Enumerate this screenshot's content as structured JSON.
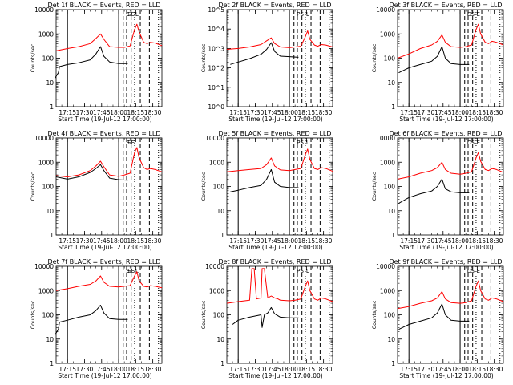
{
  "chart_data": [
    {
      "type": "line",
      "title": "Det 1f BLACK = Events, RED = LLD",
      "xlabel": "Start Time (19-Jul-12 17:00:00)",
      "ylabel": "Counts/sec",
      "ylog": true,
      "ylim": [
        1,
        10000
      ],
      "ytick_labels": [
        "1",
        "10",
        "100",
        "1000",
        "10000"
      ],
      "xlim": [
        "17:05",
        "18:38"
      ],
      "xtick_labels": [
        "17:15",
        "17:30",
        "17:45",
        "18:00",
        "18:15",
        "18:30"
      ],
      "markers": [
        "S",
        "SE",
        "L"
      ],
      "series": [
        {
          "color": "#ff0000",
          "x": [
            "17:05",
            "17:15",
            "17:25",
            "17:35",
            "17:40",
            "17:44",
            "17:47",
            "17:52",
            "18:00",
            "18:05",
            "18:10",
            "18:14",
            "18:16",
            "18:18",
            "18:22",
            "18:25",
            "18:28",
            "18:32",
            "18:38"
          ],
          "y": [
            200,
            250,
            300,
            400,
            650,
            1000,
            600,
            300,
            280,
            280,
            320,
            1500,
            2500,
            1200,
            450,
            400,
            450,
            420,
            330
          ]
        },
        {
          "color": "#000000",
          "x": [
            "17:04",
            "17:07",
            "17:08",
            "17:15",
            "17:25",
            "17:35",
            "17:40",
            "17:44",
            "17:47",
            "17:52",
            "18:00",
            "18:08"
          ],
          "y": [
            15,
            25,
            45,
            55,
            65,
            85,
            150,
            300,
            120,
            70,
            60,
            60
          ]
        }
      ]
    },
    {
      "type": "line",
      "title": "Det 2f BLACK = Events, RED = LLD",
      "xlabel": "Start Time (19-Jul-12 17:00:00)",
      "ylabel": "Counts/sec",
      "ylog": true,
      "ylim": [
        1,
        100000
      ],
      "ytick_labels": [
        "10^0",
        "10^1",
        "10^2",
        "10^3",
        "10^4",
        "10^5"
      ],
      "xlim": [
        "17:05",
        "18:38"
      ],
      "xtick_labels": [
        "17:15",
        "17:30",
        "17:45",
        "18:00",
        "18:15",
        "18:30"
      ],
      "markers": [
        "P",
        "S",
        "L"
      ],
      "series": [
        {
          "color": "#ff0000",
          "x": [
            "17:05",
            "17:15",
            "17:25",
            "17:35",
            "17:40",
            "17:44",
            "17:47",
            "17:52",
            "18:00",
            "18:05",
            "18:10",
            "18:14",
            "18:16",
            "18:18",
            "18:22",
            "18:25",
            "18:28",
            "18:32",
            "18:38"
          ],
          "y": [
            900,
            1000,
            1200,
            1600,
            2500,
            3500,
            1800,
            1200,
            1100,
            1200,
            1300,
            4000,
            8000,
            3000,
            1500,
            1300,
            1600,
            1500,
            1200
          ]
        },
        {
          "color": "#000000",
          "x": [
            "17:08",
            "17:15",
            "17:25",
            "17:35",
            "17:40",
            "17:44",
            "17:47",
            "17:52",
            "18:00",
            "18:08"
          ],
          "y": [
            150,
            200,
            300,
            500,
            900,
            2000,
            700,
            400,
            380,
            350
          ]
        }
      ]
    },
    {
      "type": "line",
      "title": "Det 3f BLACK = Events, RED = LLD",
      "xlabel": "Start Time (19-Jul-12 17:00:00)",
      "ylabel": "Counts/sec",
      "ylog": true,
      "ylim": [
        1,
        10000
      ],
      "ytick_labels": [
        "1",
        "10",
        "100",
        "1000",
        "10000"
      ],
      "xlim": [
        "17:05",
        "18:38"
      ],
      "xtick_labels": [
        "17:15",
        "17:30",
        "17:45",
        "18:00",
        "18:15",
        "18:30"
      ],
      "markers": [
        "D",
        "S",
        "E"
      ],
      "series": [
        {
          "color": "#ff0000",
          "x": [
            "17:05",
            "17:15",
            "17:25",
            "17:35",
            "17:40",
            "17:44",
            "17:47",
            "17:52",
            "18:00",
            "18:05",
            "18:10",
            "18:14",
            "18:16",
            "18:18",
            "18:22",
            "18:25",
            "18:28",
            "18:32",
            "18:38"
          ],
          "y": [
            100,
            150,
            250,
            350,
            500,
            900,
            450,
            300,
            280,
            300,
            350,
            1500,
            2500,
            1000,
            450,
            400,
            500,
            450,
            350
          ]
        },
        {
          "color": "#000000",
          "x": [
            "17:06",
            "17:15",
            "17:25",
            "17:35",
            "17:40",
            "17:44",
            "17:47",
            "17:52",
            "18:00",
            "18:08"
          ],
          "y": [
            25,
            40,
            55,
            75,
            120,
            300,
            100,
            60,
            55,
            55
          ]
        }
      ]
    },
    {
      "type": "line",
      "title": "Det 4f BLACK = Events, RED = LLD",
      "xlabel": "Start Time (19-Jul-12 17:00:00)",
      "ylabel": "Counts/sec",
      "ylog": true,
      "ylim": [
        1,
        10000
      ],
      "ytick_labels": [
        "1",
        "10",
        "100",
        "1000",
        "10000"
      ],
      "xlim": [
        "17:05",
        "18:38"
      ],
      "xtick_labels": [
        "17:15",
        "17:30",
        "17:45",
        "18:00",
        "18:15",
        "18:30"
      ],
      "markers": [
        "S",
        "SE"
      ],
      "series": [
        {
          "color": "#ff0000",
          "x": [
            "17:05",
            "17:15",
            "17:25",
            "17:35",
            "17:40",
            "17:44",
            "17:47",
            "17:52",
            "18:00",
            "18:05",
            "18:10",
            "18:14",
            "18:16",
            "18:18",
            "18:22",
            "18:25",
            "18:28",
            "18:32",
            "18:38"
          ],
          "y": [
            280,
            250,
            300,
            450,
            700,
            1100,
            650,
            300,
            260,
            300,
            350,
            2500,
            4000,
            1500,
            600,
            500,
            550,
            500,
            400
          ]
        },
        {
          "color": "#000000",
          "x": [
            "17:05",
            "17:15",
            "17:25",
            "17:35",
            "17:40",
            "17:44",
            "17:47",
            "17:52",
            "18:00",
            "18:08"
          ],
          "y": [
            250,
            200,
            250,
            380,
            550,
            800,
            450,
            220,
            190,
            180
          ]
        }
      ]
    },
    {
      "type": "line",
      "title": "Det 5f BLACK = Events, RED = LLD",
      "xlabel": "Start Time (19-Jul-12 17:00:00)",
      "ylabel": "Counts/sec",
      "ylog": true,
      "ylim": [
        1,
        10000
      ],
      "ytick_labels": [
        "1",
        "10",
        "100",
        "1000",
        "10000"
      ],
      "xlim": [
        "17:05",
        "18:38"
      ],
      "xtick_labels": [
        "17:15",
        "17:30",
        "17:45",
        "18:00",
        "18:15",
        "18:30"
      ],
      "markers": [
        "P",
        "S",
        "L"
      ],
      "series": [
        {
          "color": "#ff0000",
          "x": [
            "17:05",
            "17:15",
            "17:25",
            "17:35",
            "17:40",
            "17:44",
            "17:47",
            "17:52",
            "18:00",
            "18:05",
            "18:10",
            "18:14",
            "18:16",
            "18:18",
            "18:22",
            "18:25",
            "18:28",
            "18:32",
            "18:38"
          ],
          "y": [
            400,
            450,
            500,
            550,
            800,
            1500,
            700,
            480,
            450,
            500,
            550,
            2000,
            3500,
            1300,
            550,
            500,
            600,
            550,
            420
          ]
        },
        {
          "color": "#000000",
          "x": [
            "17:08",
            "17:15",
            "17:25",
            "17:35",
            "17:40",
            "17:44",
            "17:47",
            "17:52",
            "18:00",
            "18:08"
          ],
          "y": [
            60,
            70,
            90,
            110,
            200,
            500,
            150,
            100,
            90,
            90
          ]
        }
      ]
    },
    {
      "type": "line",
      "title": "Det 6f BLACK = Events, RED = LLD",
      "xlabel": "Start Time (19-Jul-12 17:00:00)",
      "ylabel": "Counts/sec",
      "ylog": true,
      "ylim": [
        1,
        10000
      ],
      "ytick_labels": [
        "1",
        "10",
        "100",
        "1000",
        "10000"
      ],
      "xlim": [
        "17:05",
        "18:38"
      ],
      "xtick_labels": [
        "17:15",
        "17:30",
        "17:45",
        "18:00",
        "18:15",
        "18:30"
      ],
      "markers": [
        "D",
        "S",
        "E"
      ],
      "series": [
        {
          "color": "#ff0000",
          "x": [
            "17:05",
            "17:15",
            "17:25",
            "17:35",
            "17:40",
            "17:44",
            "17:47",
            "17:52",
            "18:00",
            "18:05",
            "18:10",
            "18:14",
            "18:16",
            "18:18",
            "18:22",
            "18:25",
            "18:28",
            "18:32",
            "18:38"
          ],
          "y": [
            200,
            250,
            350,
            450,
            600,
            1000,
            500,
            350,
            320,
            350,
            400,
            1500,
            2500,
            1100,
            500,
            450,
            550,
            500,
            380
          ]
        },
        {
          "color": "#000000",
          "x": [
            "17:06",
            "17:15",
            "17:25",
            "17:35",
            "17:40",
            "17:44",
            "17:47",
            "17:52",
            "18:00",
            "18:08"
          ],
          "y": [
            20,
            35,
            50,
            65,
            100,
            200,
            80,
            60,
            55,
            55
          ]
        }
      ]
    },
    {
      "type": "line",
      "title": "Det 7f BLACK = Events, RED = LLD",
      "xlabel": "Start Time (19-Jul-12 17:00:00)",
      "ylabel": "Counts/sec",
      "ylog": true,
      "ylim": [
        1,
        10000
      ],
      "ytick_labels": [
        "1",
        "10",
        "100",
        "1000",
        "10000"
      ],
      "xlim": [
        "17:05",
        "18:38"
      ],
      "xtick_labels": [
        "17:15",
        "17:30",
        "17:45",
        "18:00",
        "18:15",
        "18:30"
      ],
      "markers": [
        "S",
        "SE",
        "L"
      ],
      "series": [
        {
          "color": "#ff0000",
          "x": [
            "17:05",
            "17:15",
            "17:25",
            "17:35",
            "17:40",
            "17:44",
            "17:47",
            "17:52",
            "18:00",
            "18:05",
            "18:10",
            "18:14",
            "18:16",
            "18:18",
            "18:22",
            "18:25",
            "18:28",
            "18:32",
            "18:38"
          ],
          "y": [
            1000,
            1200,
            1500,
            1800,
            2500,
            4000,
            2200,
            1500,
            1400,
            1500,
            1600,
            4000,
            6000,
            2500,
            1500,
            1400,
            1600,
            1500,
            1300
          ]
        },
        {
          "color": "#000000",
          "x": [
            "17:04",
            "17:07",
            "17:08",
            "17:15",
            "17:25",
            "17:35",
            "17:40",
            "17:44",
            "17:47",
            "17:52",
            "18:00",
            "18:08"
          ],
          "y": [
            15,
            25,
            50,
            60,
            80,
            100,
            150,
            250,
            120,
            70,
            65,
            65
          ]
        }
      ]
    },
    {
      "type": "line",
      "title": "Det 8f BLACK = Events, RED = LLD",
      "xlabel": "Start Time (19-Jul-12 17:00:00)",
      "ylabel": "Counts/sec",
      "ylog": true,
      "ylim": [
        1,
        10000
      ],
      "ytick_labels": [
        "1",
        "10",
        "100",
        "1000",
        "10000"
      ],
      "xlim": [
        "17:05",
        "18:38"
      ],
      "xtick_labels": [
        "17:15",
        "17:30",
        "17:45",
        "18:00",
        "18:15",
        "18:30"
      ],
      "markers": [
        "P",
        "S",
        "L"
      ],
      "series": [
        {
          "color": "#ff0000",
          "x": [
            "17:05",
            "17:15",
            "17:25",
            "17:27",
            "17:29",
            "17:31",
            "17:35",
            "17:36",
            "17:38",
            "17:41",
            "17:44",
            "17:47",
            "17:50",
            "17:52",
            "18:00",
            "18:05",
            "18:10",
            "18:14",
            "18:16",
            "18:18",
            "18:22",
            "18:25",
            "18:28",
            "18:32",
            "18:38"
          ],
          "y": [
            300,
            350,
            400,
            8000,
            8000,
            450,
            500,
            8000,
            8000,
            500,
            600,
            500,
            450,
            400,
            380,
            400,
            450,
            1500,
            2500,
            1000,
            450,
            400,
            500,
            450,
            350
          ]
        },
        {
          "color": "#000000",
          "x": [
            "17:10",
            "17:15",
            "17:25",
            "17:35",
            "17:36",
            "17:38",
            "17:41",
            "17:44",
            "17:47",
            "17:52",
            "18:00",
            "18:08"
          ],
          "y": [
            40,
            60,
            80,
            100,
            30,
            100,
            120,
            200,
            110,
            80,
            75,
            75
          ]
        }
      ]
    },
    {
      "type": "line",
      "title": "Det 9f BLACK = Events, RED = LLD",
      "xlabel": "Start Time (19-Jul-12 17:00:00)",
      "ylabel": "Counts/sec",
      "ylog": true,
      "ylim": [
        1,
        10000
      ],
      "ytick_labels": [
        "1",
        "10",
        "100",
        "1000",
        "10000"
      ],
      "xlim": [
        "17:05",
        "18:38"
      ],
      "xtick_labels": [
        "17:15",
        "17:30",
        "17:45",
        "18:00",
        "18:15",
        "18:30"
      ],
      "markers": [
        "D",
        "S",
        "E"
      ],
      "series": [
        {
          "color": "#ff0000",
          "x": [
            "17:05",
            "17:15",
            "17:25",
            "17:35",
            "17:40",
            "17:44",
            "17:47",
            "17:52",
            "18:00",
            "18:05",
            "18:10",
            "18:14",
            "18:16",
            "18:18",
            "18:22",
            "18:25",
            "18:28",
            "18:32",
            "18:38"
          ],
          "y": [
            180,
            220,
            300,
            380,
            500,
            900,
            450,
            320,
            300,
            320,
            380,
            1500,
            2500,
            1000,
            450,
            400,
            500,
            450,
            350
          ]
        },
        {
          "color": "#000000",
          "x": [
            "17:06",
            "17:15",
            "17:25",
            "17:35",
            "17:40",
            "17:44",
            "17:47",
            "17:52",
            "18:00",
            "18:08"
          ],
          "y": [
            25,
            40,
            55,
            75,
            120,
            280,
            100,
            60,
            55,
            55
          ]
        }
      ]
    }
  ]
}
